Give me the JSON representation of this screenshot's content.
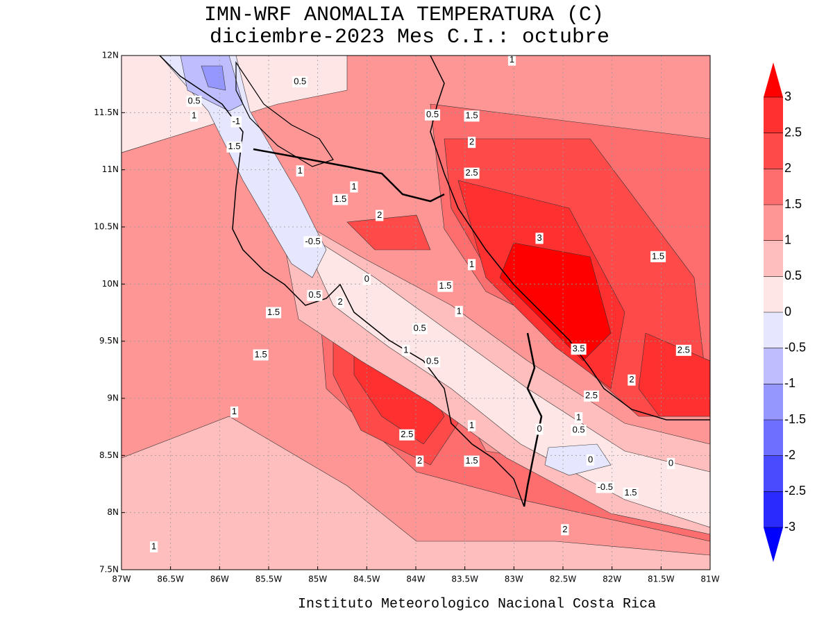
{
  "title": "IMN-WRF  ANOMALIA TEMPERATURA (C)",
  "subtitle": "diciembre-2023 Mes C.I.: octubre",
  "footer": "Instituto Meteorologico Nacional Costa Rica",
  "map": {
    "xlim": [
      -87,
      -81
    ],
    "ylim": [
      7.5,
      12
    ],
    "xticks": [
      {
        "value": -87,
        "label": "87W"
      },
      {
        "value": -86.5,
        "label": "86.5W"
      },
      {
        "value": -86,
        "label": "86W"
      },
      {
        "value": -85.5,
        "label": "85.5W"
      },
      {
        "value": -85,
        "label": "85W"
      },
      {
        "value": -84.5,
        "label": "84.5W"
      },
      {
        "value": -84,
        "label": "84W"
      },
      {
        "value": -83.5,
        "label": "83.5W"
      },
      {
        "value": -83,
        "label": "83W"
      },
      {
        "value": -82.5,
        "label": "82.5W"
      },
      {
        "value": -82,
        "label": "82W"
      },
      {
        "value": -81.5,
        "label": "81.5W"
      },
      {
        "value": -81,
        "label": "81W"
      }
    ],
    "yticks": [
      {
        "value": 7.5,
        "label": "7.5N"
      },
      {
        "value": 8,
        "label": "8N"
      },
      {
        "value": 8.5,
        "label": "8.5N"
      },
      {
        "value": 9,
        "label": "9N"
      },
      {
        "value": 9.5,
        "label": "9.5N"
      },
      {
        "value": 10,
        "label": "10N"
      },
      {
        "value": 10.5,
        "label": "10.5N"
      },
      {
        "value": 11,
        "label": "11N"
      },
      {
        "value": 11.5,
        "label": "11.5N"
      },
      {
        "value": 12,
        "label": "12N"
      }
    ],
    "grid": true,
    "contour_labels": [
      {
        "value": 1,
        "lon": -83.02,
        "lat": 11.96
      },
      {
        "value": 0.5,
        "lon": -85.18,
        "lat": 11.77
      },
      {
        "value": 0.5,
        "lon": -86.26,
        "lat": 11.6
      },
      {
        "value": 1,
        "lon": -86.26,
        "lat": 11.47
      },
      {
        "value": -1,
        "lon": -85.83,
        "lat": 11.42
      },
      {
        "value": 1.5,
        "lon": -85.85,
        "lat": 11.2
      },
      {
        "value": 0.5,
        "lon": -83.83,
        "lat": 11.48
      },
      {
        "value": 1.5,
        "lon": -83.43,
        "lat": 11.47
      },
      {
        "value": 2,
        "lon": -83.43,
        "lat": 11.24
      },
      {
        "value": 2.5,
        "lon": -83.43,
        "lat": 10.97
      },
      {
        "value": 1,
        "lon": -85.18,
        "lat": 10.99
      },
      {
        "value": 1,
        "lon": -84.63,
        "lat": 10.85
      },
      {
        "value": 1.5,
        "lon": -84.77,
        "lat": 10.74
      },
      {
        "value": 2,
        "lon": -84.37,
        "lat": 10.6
      },
      {
        "value": -0.5,
        "lon": -85.05,
        "lat": 10.37
      },
      {
        "value": 3,
        "lon": -82.74,
        "lat": 10.4
      },
      {
        "value": 1,
        "lon": -83.43,
        "lat": 10.17
      },
      {
        "value": 1.5,
        "lon": -81.53,
        "lat": 10.24
      },
      {
        "value": 0,
        "lon": -84.5,
        "lat": 10.04
      },
      {
        "value": 1.5,
        "lon": -83.7,
        "lat": 9.98
      },
      {
        "value": 0.5,
        "lon": -85.03,
        "lat": 9.9
      },
      {
        "value": 2,
        "lon": -84.77,
        "lat": 9.84
      },
      {
        "value": 1,
        "lon": -83.56,
        "lat": 9.76
      },
      {
        "value": 1.5,
        "lon": -85.45,
        "lat": 9.75
      },
      {
        "value": 0.5,
        "lon": -83.96,
        "lat": 9.61
      },
      {
        "value": 3.5,
        "lon": -82.34,
        "lat": 9.43
      },
      {
        "value": 2.5,
        "lon": -81.27,
        "lat": 9.42
      },
      {
        "value": 1.5,
        "lon": -85.58,
        "lat": 9.38
      },
      {
        "value": 1,
        "lon": -84.1,
        "lat": 9.42
      },
      {
        "value": 0.5,
        "lon": -83.83,
        "lat": 9.32
      },
      {
        "value": 2,
        "lon": -81.8,
        "lat": 9.16
      },
      {
        "value": 2.5,
        "lon": -82.21,
        "lat": 9.02
      },
      {
        "value": 1,
        "lon": -85.85,
        "lat": 8.88
      },
      {
        "value": 1,
        "lon": -82.34,
        "lat": 8.83
      },
      {
        "value": 0.5,
        "lon": -82.34,
        "lat": 8.72
      },
      {
        "value": 2.5,
        "lon": -84.09,
        "lat": 8.68
      },
      {
        "value": 1,
        "lon": -83.43,
        "lat": 8.76
      },
      {
        "value": 0,
        "lon": -82.74,
        "lat": 8.73
      },
      {
        "value": 2,
        "lon": -83.96,
        "lat": 8.45
      },
      {
        "value": 1.5,
        "lon": -83.43,
        "lat": 8.45
      },
      {
        "value": 0,
        "lon": -82.22,
        "lat": 8.46
      },
      {
        "value": 0,
        "lon": -81.4,
        "lat": 8.43
      },
      {
        "value": -0.5,
        "lon": -82.07,
        "lat": 8.22
      },
      {
        "value": 1.5,
        "lon": -81.81,
        "lat": 8.17
      },
      {
        "value": 2,
        "lon": -82.48,
        "lat": 7.85
      },
      {
        "value": 1,
        "lon": -86.67,
        "lat": 7.7
      }
    ]
  },
  "colorbar": {
    "levels": [
      -3,
      -2.5,
      -2,
      -1.5,
      -1,
      -0.5,
      0,
      0.5,
      1,
      1.5,
      2,
      2.5,
      3
    ],
    "colors": [
      "#0000ff",
      "#2a2aff",
      "#4a4aff",
      "#6e6eff",
      "#9696ff",
      "#bebeff",
      "#e6e6ff",
      "#ffe6e6",
      "#ffbebe",
      "#ff9696",
      "#ff6e6e",
      "#ff4a4a",
      "#ff3030",
      "#ff0000"
    ]
  }
}
